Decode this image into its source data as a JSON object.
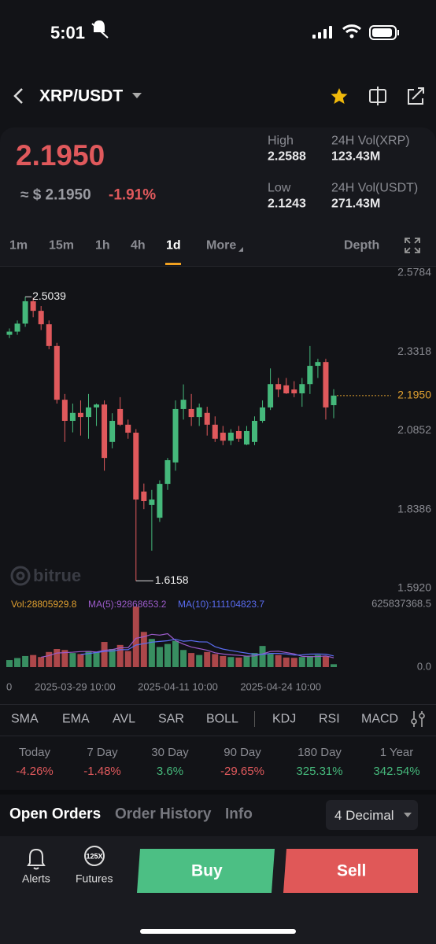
{
  "status": {
    "time": "5:01"
  },
  "header": {
    "pair": "XRP/USDT"
  },
  "ticker": {
    "price": "2.1950",
    "usd": "≈ $ 2.1950",
    "change": "-1.91%",
    "stats": [
      {
        "label": "High",
        "value": "2.2588"
      },
      {
        "label": "24H Vol(XRP)",
        "value": "123.43M"
      },
      {
        "label": "Low",
        "value": "2.1243"
      },
      {
        "label": "24H Vol(USDT)",
        "value": "271.43M"
      }
    ]
  },
  "intervals": {
    "items": [
      "1m",
      "15m",
      "1h",
      "4h",
      "1d",
      "More"
    ],
    "active": 4,
    "depth": "Depth"
  },
  "watermark": "bitrue",
  "chart_data": {
    "type": "candlestick",
    "categories": [
      "0",
      null,
      null,
      null,
      null,
      null,
      null,
      null,
      "2025-03-29 10:00",
      null,
      null,
      null,
      null,
      null,
      null,
      null,
      null,
      null,
      null,
      null,
      null,
      "2025-04-11 10:00",
      null,
      null,
      null,
      null,
      null,
      null,
      null,
      null,
      null,
      null,
      null,
      null,
      "2025-04-24 10:00",
      null,
      null,
      null,
      null,
      null,
      null,
      null
    ],
    "open": [
      2.385,
      2.395,
      2.42,
      2.49,
      2.46,
      2.418,
      2.35,
      2.182,
      2.116,
      2.141,
      2.128,
      2.158,
      2.167,
      2.05,
      2.153,
      2.104,
      2.079,
      1.895,
      1.853,
      1.813,
      1.919,
      1.986,
      2.153,
      2.153,
      2.128,
      2.141,
      2.104,
      2.079,
      2.054,
      2.084,
      2.042,
      2.05,
      2.116,
      2.158,
      2.231,
      2.227,
      2.214,
      2.202,
      2.231,
      2.288,
      2.3,
      2.165
    ],
    "high": [
      2.405,
      2.43,
      2.5039,
      2.5,
      2.475,
      2.43,
      2.36,
      2.2,
      2.17,
      2.18,
      2.2,
      2.17,
      2.18,
      2.14,
      2.19,
      2.12,
      2.09,
      1.92,
      1.9,
      1.93,
      2.0,
      2.18,
      2.23,
      2.2,
      2.17,
      2.16,
      2.13,
      2.1,
      2.09,
      2.1,
      2.1,
      2.13,
      2.18,
      2.28,
      2.25,
      2.25,
      2.24,
      2.25,
      2.35,
      2.31,
      2.31,
      2.215
    ],
    "low": [
      2.375,
      2.385,
      2.41,
      2.44,
      2.4,
      2.34,
      2.17,
      2.05,
      2.08,
      2.07,
      2.06,
      2.1,
      1.96,
      2.03,
      2.1,
      2.06,
      1.6158,
      1.84,
      1.71,
      1.8,
      1.9,
      1.96,
      2.12,
      2.1,
      2.1,
      2.07,
      2.05,
      2.04,
      2.04,
      2.05,
      2.04,
      2.04,
      2.11,
      2.15,
      2.19,
      2.2,
      2.19,
      2.16,
      2.2,
      2.25,
      2.12,
      2.1243
    ],
    "close": [
      2.395,
      2.42,
      2.49,
      2.46,
      2.418,
      2.35,
      2.182,
      2.116,
      2.141,
      2.128,
      2.158,
      2.167,
      2.0,
      2.116,
      2.104,
      2.079,
      1.87,
      1.865,
      1.87,
      1.919,
      1.993,
      2.153,
      2.182,
      2.128,
      2.158,
      2.104,
      2.06,
      2.054,
      2.079,
      2.06,
      2.084,
      2.116,
      2.158,
      2.231,
      2.214,
      2.202,
      2.202,
      2.231,
      2.288,
      2.3,
      2.158,
      2.195
    ],
    "colors": {
      "up": "#45b87b",
      "down": "#e0595c"
    },
    "ylim": [
      1.592,
      2.5784
    ],
    "yticks": [
      2.5784,
      2.3318,
      2.0852,
      1.8386,
      {
        "value": 1.592,
        "label": "1.5920"
      }
    ],
    "last_price": {
      "value": 2.195,
      "label": "2.1950"
    },
    "max_label": 2.5039,
    "min_label": 1.6158,
    "volume": {
      "legend": [
        {
          "text": "Vol:28805929.8",
          "color": "#e0a030"
        },
        {
          "text": "MA(5):92868653.2",
          "color": "#9b5bc9"
        },
        {
          "text": "MA(10):111104823.7",
          "color": "#5a6cf0"
        }
      ],
      "values": [
        70000000,
        90000000,
        110000000,
        120000000,
        100000000,
        150000000,
        180000000,
        170000000,
        140000000,
        130000000,
        160000000,
        150000000,
        250000000,
        180000000,
        220000000,
        160000000,
        600000000,
        350000000,
        280000000,
        200000000,
        230000000,
        260000000,
        170000000,
        140000000,
        120000000,
        150000000,
        130000000,
        110000000,
        100000000,
        95000000,
        110000000,
        140000000,
        210000000,
        130000000,
        120000000,
        95000000,
        92000000,
        100000000,
        110000000,
        120000000,
        105000000,
        28805929.8
      ],
      "ma5": [
        null,
        null,
        null,
        null,
        98000000,
        114000000,
        140000000,
        144000000,
        148000000,
        154000000,
        156000000,
        150000000,
        166000000,
        174000000,
        192000000,
        192000000,
        286000000,
        302000000,
        326000000,
        318000000,
        332000000,
        264000000,
        228000000,
        200000000,
        184000000,
        168000000,
        142000000,
        130000000,
        122000000,
        117000000,
        109000000,
        111000000,
        131000000,
        155000000,
        158000000,
        145000000,
        131000000,
        107000000,
        103000000,
        105000000,
        111000000,
        92868653.2
      ],
      "ma10": [
        null,
        null,
        null,
        null,
        null,
        null,
        null,
        null,
        null,
        126000000,
        134000000,
        145000000,
        155000000,
        159000000,
        173000000,
        174000000,
        219000000,
        233000000,
        248000000,
        255000000,
        262000000,
        277000000,
        257000000,
        263000000,
        251000000,
        250000000,
        203000000,
        179000000,
        165000000,
        151000000,
        139000000,
        127000000,
        126000000,
        136000000,
        136000000,
        131000000,
        120000000,
        121000000,
        129000000,
        130000000,
        128000000,
        111104823.7
      ],
      "ylim": [
        0,
        625837368.5
      ],
      "yticks": [
        {
          "value": 0,
          "label": "0.0"
        },
        625837368.5
      ]
    }
  },
  "indicators": [
    "SMA",
    "EMA",
    "AVL",
    "SAR",
    "BOLL",
    "KDJ",
    "RSI",
    "MACD"
  ],
  "performance": [
    {
      "period": "Today",
      "change": "-4.26%"
    },
    {
      "period": "7 Day",
      "change": "-1.48%"
    },
    {
      "period": "30 Day",
      "change": "3.6%"
    },
    {
      "period": "90 Day",
      "change": "-29.65%"
    },
    {
      "period": "180 Day",
      "change": "325.31%"
    },
    {
      "period": "1 Year",
      "change": "342.54%"
    }
  ],
  "tabs": {
    "items": [
      "Open Orders",
      "Order History",
      "Info"
    ],
    "decimal": "4 Decimal"
  },
  "bottom": {
    "alerts": "Alerts",
    "futures_badge": "125X",
    "futures": "Futures",
    "buy": "Buy",
    "sell": "Sell"
  }
}
